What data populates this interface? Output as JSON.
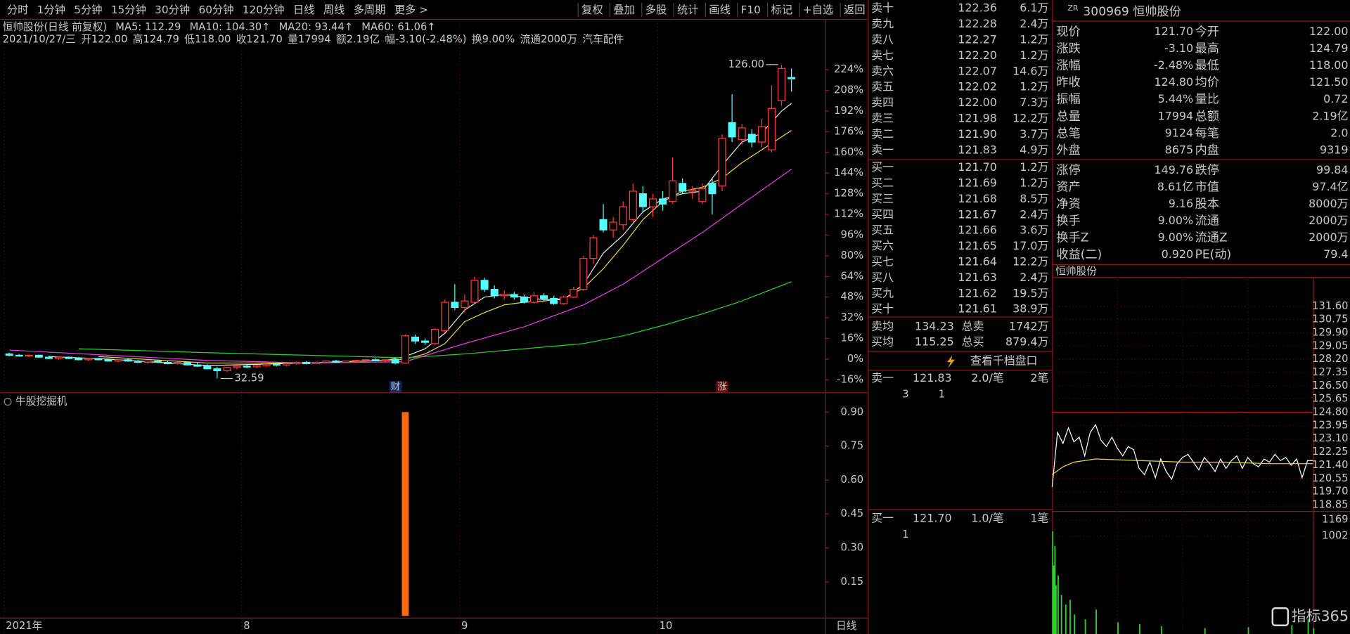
{
  "toolbar": {
    "tabs": [
      "分时",
      "1分钟",
      "5分钟",
      "15分钟",
      "30分钟",
      "60分钟",
      "120分钟",
      "日线",
      "周线",
      "多周期",
      "更多 >"
    ],
    "buttons": [
      "复权",
      "叠加",
      "多股",
      "统计",
      "画线",
      "F10",
      "标记",
      "+自选",
      "返回"
    ]
  },
  "main_chart": {
    "type": "candlestick",
    "title": "恒帅股份(日线 前复权)",
    "info": [
      "2021/10/27/三",
      "开122.00",
      "高124.79",
      "低118.00",
      "收121.70",
      "量17994",
      "额2.19亿",
      "幅-3.10(-2.48%)",
      "换9.00%",
      "流通2000万",
      "汽车配件"
    ],
    "categories": [
      "2021年",
      null,
      null,
      null,
      null,
      null,
      null,
      null,
      null,
      null,
      null,
      null,
      null,
      null,
      null,
      null,
      null,
      null,
      null,
      null,
      null,
      null,
      null,
      null,
      "8",
      null,
      null,
      null,
      null,
      null,
      null,
      null,
      null,
      null,
      null,
      null,
      null,
      null,
      null,
      null,
      null,
      null,
      null,
      null,
      null,
      null,
      "9",
      null,
      null,
      null,
      null,
      null,
      null,
      null,
      null,
      null,
      null,
      null,
      null,
      null,
      null,
      null,
      null,
      null,
      null,
      null,
      "10",
      null,
      null,
      null,
      null,
      null,
      null,
      null,
      null,
      null,
      null,
      null,
      null,
      null
    ],
    "ohlc": [
      [
        4,
        5,
        2,
        3
      ],
      [
        3,
        4,
        2,
        2.5
      ],
      [
        2.5,
        3.5,
        1.5,
        3
      ],
      [
        3,
        3.5,
        1,
        1.5
      ],
      [
        1.5,
        2.5,
        0,
        0.5
      ],
      [
        0.5,
        2,
        -0.5,
        1.5
      ],
      [
        1.5,
        2,
        0,
        0.5
      ],
      [
        0.5,
        1.5,
        -1,
        -0.5
      ],
      [
        -0.5,
        1,
        -1.5,
        0.5
      ],
      [
        0.5,
        1,
        -1,
        -0.5
      ],
      [
        -0.5,
        0.5,
        -2,
        -1.5
      ],
      [
        -1.5,
        0,
        -2.5,
        -0.5
      ],
      [
        -0.5,
        0.5,
        -2,
        -1.5
      ],
      [
        -1.5,
        -0.5,
        -3,
        -2.5
      ],
      [
        -2.5,
        -1,
        -3.5,
        -1.5
      ],
      [
        -1.5,
        -0.5,
        -3,
        -2.5
      ],
      [
        -2.5,
        -1.5,
        -4,
        -3.5
      ],
      [
        -3.5,
        -2,
        -4.5,
        -2.5
      ],
      [
        -2.5,
        -2,
        -5,
        -4.5
      ],
      [
        -4.5,
        -3,
        -6,
        -5.5
      ],
      [
        -5.5,
        -4,
        -8,
        -7.5
      ],
      [
        -7.5,
        -6,
        -15,
        -9
      ],
      [
        -9,
        -6,
        -10,
        -6.5
      ],
      [
        -6.5,
        -5,
        -8,
        -5.5
      ],
      [
        -5.5,
        -4,
        -7,
        -6
      ],
      [
        -6,
        -4.5,
        -7,
        -5
      ],
      [
        -5,
        -3.5,
        -6,
        -4
      ],
      [
        -4,
        -3,
        -5.5,
        -4.5
      ],
      [
        -4.5,
        -3,
        -5.5,
        -3.5
      ],
      [
        -3.5,
        -2,
        -4.5,
        -2.5
      ],
      [
        -2.5,
        -1.5,
        -4,
        -3.5
      ],
      [
        -3.5,
        -2,
        -4,
        -2.5
      ],
      [
        -2.5,
        -1,
        -3.5,
        -1.5
      ],
      [
        -1.5,
        -0.5,
        -3,
        -2.5
      ],
      [
        -2.5,
        -1,
        -3,
        -1.5
      ],
      [
        -1.5,
        -0.5,
        -2.5,
        -1
      ],
      [
        -1,
        0,
        -2,
        -0.5
      ],
      [
        -0.5,
        0.5,
        -1.5,
        -1
      ],
      [
        -1,
        0,
        -2,
        -0.5
      ],
      [
        -0.5,
        0.5,
        -4,
        -3
      ],
      [
        -3,
        19,
        -3,
        18
      ],
      [
        17,
        19,
        12,
        14
      ],
      [
        14,
        16,
        11,
        13
      ],
      [
        12,
        24,
        11,
        23
      ],
      [
        22,
        46,
        21,
        44
      ],
      [
        44,
        58,
        38,
        40
      ],
      [
        40,
        50,
        36,
        45
      ],
      [
        44,
        64,
        43,
        61
      ],
      [
        61,
        63,
        52,
        54
      ],
      [
        54,
        57,
        47,
        49
      ],
      [
        49,
        53,
        46,
        50
      ],
      [
        50,
        52,
        46,
        48
      ],
      [
        48,
        50,
        43,
        44
      ],
      [
        44,
        52,
        43,
        49
      ],
      [
        49,
        51,
        45,
        47
      ],
      [
        47,
        49,
        42,
        43
      ],
      [
        43,
        49,
        42,
        48
      ],
      [
        48,
        56,
        47,
        54
      ],
      [
        54,
        80,
        53,
        78
      ],
      [
        78,
        96,
        74,
        94
      ],
      [
        108,
        120,
        98,
        100
      ],
      [
        100,
        110,
        94,
        106
      ],
      [
        104,
        122,
        100,
        118
      ],
      [
        108,
        136,
        106,
        130
      ],
      [
        128,
        134,
        114,
        118
      ],
      [
        118,
        128,
        110,
        124
      ],
      [
        124,
        130,
        115,
        120
      ],
      [
        122,
        156,
        120,
        138
      ],
      [
        136,
        140,
        128,
        130
      ],
      [
        130,
        134,
        124,
        131
      ],
      [
        122,
        136,
        120,
        132
      ],
      [
        136,
        140,
        112,
        128
      ],
      [
        134,
        174,
        130,
        171
      ],
      [
        183,
        205,
        168,
        172
      ],
      [
        170,
        182,
        166,
        179
      ],
      [
        174,
        178,
        164,
        168
      ],
      [
        168,
        186,
        164,
        180
      ],
      [
        162,
        212,
        160,
        194
      ],
      [
        200,
        228,
        196,
        225
      ],
      [
        218,
        225,
        207,
        217
      ]
    ],
    "up_color": "#ff3b3b",
    "down_color": "#54ffff",
    "series": [
      {
        "name": "MA5: 112.29",
        "color": "#e8e8e8",
        "x": [
          4,
          10,
          20,
          30,
          38,
          40,
          42,
          44,
          46,
          48,
          50,
          52,
          54,
          56,
          58,
          60,
          62,
          64,
          66,
          68,
          70,
          72,
          74,
          76,
          78,
          79
        ],
        "values": [
          2,
          0,
          -5,
          -3,
          -1,
          2,
          8,
          20,
          38,
          48,
          50,
          48,
          46,
          46,
          58,
          82,
          96,
          114,
          124,
          128,
          130,
          150,
          168,
          175,
          192,
          198
        ]
      },
      {
        "name": "MA10: 104.30↑",
        "color": "#e8d848",
        "x": [
          9,
          20,
          30,
          38,
          40,
          42,
          44,
          46,
          48,
          50,
          52,
          54,
          56,
          58,
          60,
          62,
          64,
          66,
          68,
          70,
          72,
          74,
          76,
          78,
          79
        ],
        "values": [
          2,
          -3,
          -3,
          -1,
          0,
          4,
          12,
          29,
          36,
          42,
          44,
          45,
          47,
          55,
          70,
          88,
          108,
          122,
          130,
          133,
          140,
          152,
          162,
          172,
          177
        ]
      },
      {
        "name": "MA20: 93.44↑",
        "color": "#e040e0",
        "x": [
          0,
          10,
          20,
          30,
          40,
          46,
          52,
          58,
          62,
          66,
          70,
          74,
          79
        ],
        "values": [
          7,
          3,
          -1,
          -3,
          -2,
          12,
          25,
          42,
          58,
          78,
          98,
          120,
          147
        ]
      },
      {
        "name": "MA60: 61.06↑",
        "color": "#2ed02e",
        "x": [
          7,
          20,
          30,
          40,
          46,
          52,
          58,
          62,
          66,
          70,
          74,
          79
        ],
        "values": [
          8,
          5,
          3,
          1,
          4,
          8,
          12,
          18,
          26,
          35,
          45,
          60
        ]
      }
    ],
    "ylim": [
      -25,
      260
    ],
    "yticks": [
      {
        "value": -16,
        "label": "-16%"
      },
      {
        "value": 0,
        "label": "0%"
      },
      {
        "value": 16,
        "label": "16%"
      },
      {
        "value": 32,
        "label": "32%"
      },
      {
        "value": 48,
        "label": "48%"
      },
      {
        "value": 64,
        "label": "64%"
      },
      {
        "value": 80,
        "label": "80%"
      },
      {
        "value": 96,
        "label": "96%"
      },
      {
        "value": 112,
        "label": "112%"
      },
      {
        "value": 128,
        "label": "128%"
      },
      {
        "value": 144,
        "label": "144%"
      },
      {
        "value": 160,
        "label": "160%"
      },
      {
        "value": 176,
        "label": "176%"
      },
      {
        "value": 192,
        "label": "192%"
      },
      {
        "value": 208,
        "label": "208%"
      },
      {
        "value": 224,
        "label": "224%"
      }
    ],
    "high_label": "126.00",
    "low_label": "32.59",
    "markers": [
      {
        "label": "财",
        "x": 39
      },
      {
        "label": "涨",
        "x": 72
      }
    ],
    "period_label": "日线"
  },
  "indicator": {
    "type": "bar",
    "title": "牛股挖掘机",
    "color": "#ff6a10",
    "x": [
      40
    ],
    "values": [
      0.9
    ],
    "ylim": [
      -0.008,
      0.98
    ],
    "yticks": [
      {
        "value": 0.9,
        "label": "0.90"
      },
      {
        "value": 0.75,
        "label": "0.75"
      },
      {
        "value": 0.6,
        "label": "0.60"
      },
      {
        "value": 0.45,
        "label": "0.45"
      },
      {
        "value": 0.3,
        "label": "0.30"
      },
      {
        "value": 0.15,
        "label": "0.15"
      }
    ]
  },
  "order_book": {
    "sell": [
      [
        "卖十",
        "122.36",
        "6.1万"
      ],
      [
        "卖九",
        "122.28",
        "2.4万"
      ],
      [
        "卖八",
        "122.27",
        "1.2万"
      ],
      [
        "卖七",
        "122.20",
        "1.2万"
      ],
      [
        "卖六",
        "122.07",
        "14.6万"
      ],
      [
        "卖五",
        "122.02",
        "1.2万"
      ],
      [
        "卖四",
        "122.00",
        "7.3万"
      ],
      [
        "卖三",
        "121.98",
        "12.2万"
      ],
      [
        "卖二",
        "121.90",
        "3.7万"
      ],
      [
        "卖一",
        "121.83",
        "4.9万"
      ]
    ],
    "buy": [
      [
        "买一",
        "121.70",
        "1.2万"
      ],
      [
        "买二",
        "121.69",
        "1.2万"
      ],
      [
        "买三",
        "121.68",
        "8.5万"
      ],
      [
        "买四",
        "121.67",
        "2.4万"
      ],
      [
        "买五",
        "121.66",
        "3.6万"
      ],
      [
        "买六",
        "121.65",
        "17.0万"
      ],
      [
        "买七",
        "121.64",
        "12.2万"
      ],
      [
        "买八",
        "121.63",
        "2.4万"
      ],
      [
        "买九",
        "121.62",
        "19.5万"
      ],
      [
        "买十",
        "121.61",
        "38.9万"
      ]
    ],
    "summary": [
      [
        "卖均",
        "134.23",
        "总卖",
        "1742万"
      ],
      [
        "买均",
        "115.25",
        "总买",
        "879.4万"
      ]
    ],
    "button": "查看千档盘口",
    "sell_queue": {
      "head": [
        "卖一",
        "121.83",
        "2.0/笔",
        "2笔"
      ],
      "orders": [
        "3",
        "1"
      ]
    },
    "buy_queue": {
      "head": [
        "买一",
        "121.70",
        "1.0/笔",
        "1笔"
      ],
      "orders": [
        "1"
      ]
    }
  },
  "quote": {
    "tag": "ZR",
    "code_name": "300969 恒帅股份",
    "rows": [
      [
        "现价",
        "121.70",
        "今开",
        "122.00"
      ],
      [
        "涨跌",
        "-3.10",
        "最高",
        "124.79"
      ],
      [
        "涨幅",
        "-2.48%",
        "最低",
        "118.00"
      ],
      [
        "昨收",
        "124.80",
        "均价",
        "121.50"
      ],
      [
        "振幅",
        "5.44%",
        "量比",
        "0.72"
      ],
      [
        "总量",
        "17994",
        "总额",
        "2.19亿"
      ],
      [
        "总笔",
        "9124",
        "每笔",
        "2.0"
      ],
      [
        "外盘",
        "8675",
        "内盘",
        "9319"
      ]
    ],
    "rows2": [
      [
        "涨停",
        "149.76",
        "跌停",
        "99.84"
      ],
      [
        "资产",
        "8.61亿",
        "市值",
        "97.4亿"
      ],
      [
        "净资",
        "9.16",
        "股本",
        "8000万"
      ],
      [
        "换手",
        "9.00%",
        "流通",
        "2000万"
      ],
      [
        "换手Z",
        "9.00%",
        "流通Z",
        "2000万"
      ],
      [
        "收益(二)",
        "0.920",
        "PE(动)",
        "79.4"
      ]
    ]
  },
  "intraday": {
    "type": "line",
    "title": "恒帅股份",
    "ylim": [
      118.52,
      133.48
    ],
    "yticks": [
      {
        "value": 131.6,
        "label": "131.60"
      },
      {
        "value": 130.75,
        "label": "130.75"
      },
      {
        "value": 129.9,
        "label": "129.90"
      },
      {
        "value": 129.05,
        "label": "129.05"
      },
      {
        "value": 128.2,
        "label": "128.20"
      },
      {
        "value": 127.35,
        "label": "127.35"
      },
      {
        "value": 126.5,
        "label": "126.50"
      },
      {
        "value": 125.65,
        "label": "125.65"
      },
      {
        "value": 124.8,
        "label": "124.80"
      },
      {
        "value": 123.95,
        "label": "123.95"
      },
      {
        "value": 123.1,
        "label": "123.10"
      },
      {
        "value": 122.25,
        "label": "122.25"
      },
      {
        "value": 121.4,
        "label": "121.40"
      },
      {
        "value": 120.55,
        "label": "120.55"
      },
      {
        "value": 119.7,
        "label": "119.70"
      },
      {
        "value": 118.85,
        "label": "118.85"
      }
    ],
    "xlim": [
      0,
      240
    ],
    "series": [
      {
        "color": "#ffffff",
        "x": [
          0,
          5,
          10,
          15,
          20,
          25,
          30,
          35,
          40,
          45,
          50,
          55,
          60,
          65,
          70,
          75,
          80,
          85,
          90,
          95,
          100,
          105,
          110,
          115,
          120,
          125,
          130,
          135,
          140,
          145,
          150,
          155,
          160,
          165,
          170,
          175,
          180,
          185,
          190,
          195,
          200,
          205,
          210,
          215,
          220,
          225,
          230,
          235,
          240
        ],
        "values": [
          120.0,
          123.5,
          122.8,
          123.8,
          122.9,
          123.2,
          122.0,
          123.5,
          124.0,
          123.0,
          122.6,
          123.2,
          122.5,
          122.0,
          122.6,
          122.4,
          121.2,
          120.8,
          121.6,
          120.6,
          121.8,
          121.0,
          120.5,
          121.5,
          121.9,
          122.1,
          121.6,
          121.1,
          121.9,
          121.5,
          121.0,
          121.8,
          121.2,
          121.7,
          122.0,
          121.2,
          121.9,
          121.5,
          121.3,
          121.8,
          121.6,
          122.1,
          121.7,
          121.9,
          121.4,
          121.8,
          120.6,
          121.7,
          121.7
        ]
      },
      {
        "color": "#e8d848",
        "x": [
          0,
          10,
          20,
          40,
          80,
          120,
          160,
          200,
          240
        ],
        "values": [
          120.8,
          121.3,
          121.6,
          121.8,
          121.7,
          121.6,
          121.6,
          121.5,
          121.5
        ]
      }
    ],
    "volume": {
      "color": "#2ed02e",
      "ylim": [
        0,
        1250
      ],
      "yticks": [
        1169,
        1002
      ],
      "x": [
        0,
        1,
        2,
        3,
        5,
        8,
        12,
        16,
        20,
        30,
        40,
        60,
        80,
        100,
        140,
        180,
        220,
        235,
        240
      ],
      "values": [
        1050,
        700,
        900,
        500,
        600,
        400,
        300,
        350,
        200,
        150,
        250,
        120,
        100,
        80,
        60,
        70,
        90,
        150,
        60
      ]
    }
  },
  "watermark": "指标365"
}
